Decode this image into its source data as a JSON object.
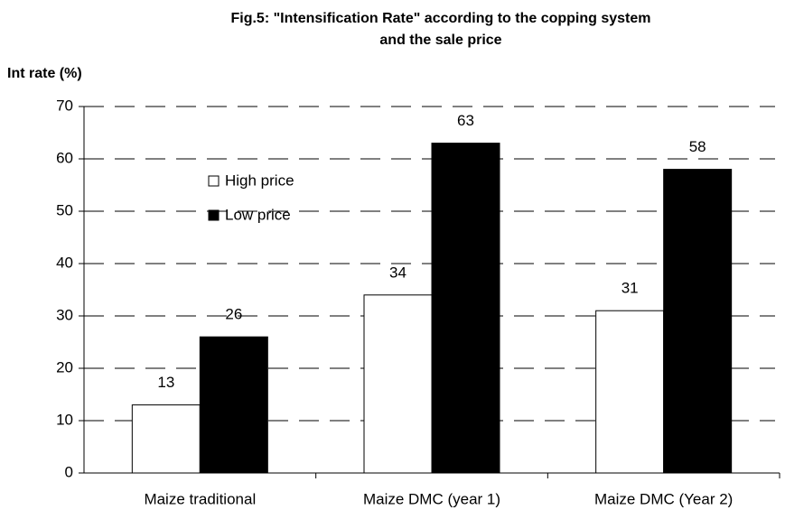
{
  "chart_data": {
    "type": "bar",
    "title": [
      "Fig.5: \"Intensification Rate\" according to the copping system",
      "and the sale price"
    ],
    "y_label": "Int rate (%)",
    "categories": [
      "Maize traditional",
      "Maize DMC (year 1)",
      "Maize DMC (Year 2)"
    ],
    "series": [
      {
        "name": "High price",
        "color": "#ffffff",
        "values": [
          13,
          34,
          31
        ]
      },
      {
        "name": "Low price",
        "color": "#000000",
        "values": [
          26,
          63,
          58
        ]
      }
    ],
    "ylim": [
      0,
      70
    ],
    "yticks": [
      0,
      10,
      20,
      30,
      40,
      50,
      60,
      70
    ],
    "grid": true,
    "legend": "upper-left"
  }
}
